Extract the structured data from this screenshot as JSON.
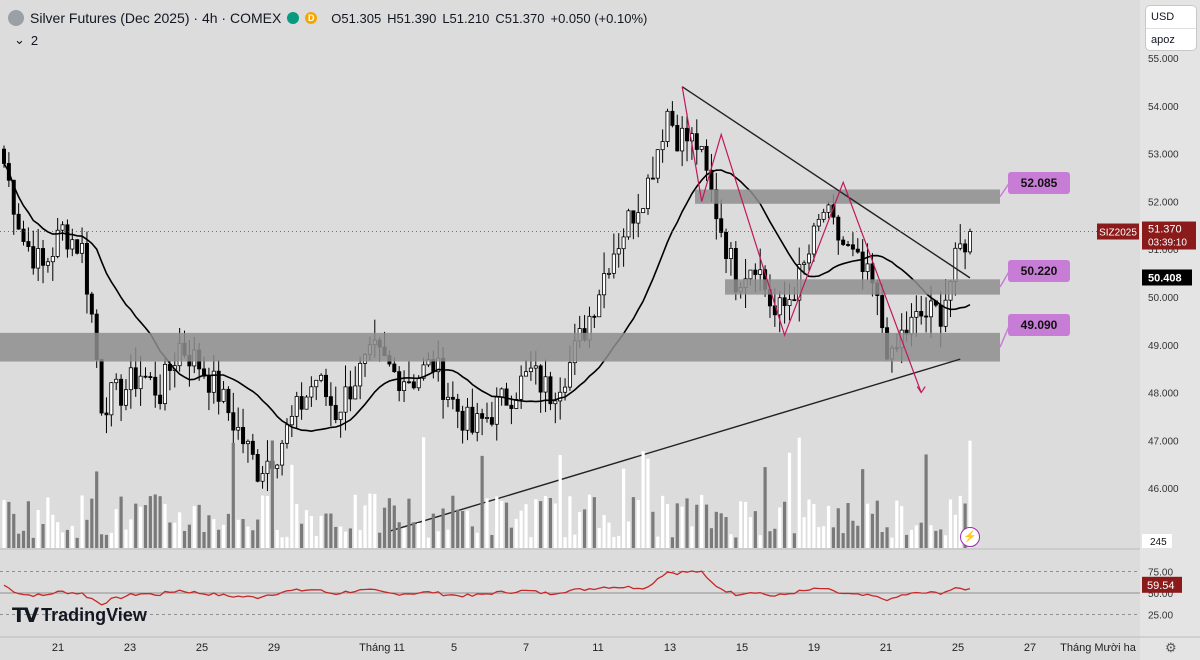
{
  "header": {
    "title": "Silver Futures (Dec 2025) · 4h · COMEX",
    "dot_label": "D",
    "o": "O51.305",
    "h": "H51.390",
    "l": "L51.210",
    "c": "C51.370",
    "chg": "+0.050 (+0.10%)",
    "indicator_count": "2"
  },
  "currency": {
    "label": "USD",
    "sub": "apoz"
  },
  "brand": "TradingView",
  "colors": {
    "up": "#ffffff",
    "down": "#000000",
    "zone": "#8e8e8e",
    "ma": "#000000",
    "pattern": "#c2185b",
    "label": "#c77dd6",
    "rsi": "#c62828",
    "price_tag": "#8b1a1a"
  },
  "chart_data": {
    "type": "candlestick",
    "title": "",
    "y_range": [
      45.0,
      55.0
    ],
    "y_ticks": [
      "55.000",
      "54.000",
      "53.000",
      "52.000",
      "51.000",
      "50.000",
      "49.000",
      "48.000",
      "47.000",
      "46.000"
    ],
    "x_ticks": [
      "21",
      "23",
      "25",
      "29",
      "Tháng 11",
      "5",
      "7",
      "11",
      "13",
      "15",
      "19",
      "21",
      "25",
      "27",
      "Tháng Mười ha"
    ],
    "close_path": [
      [
        0,
        52.8
      ],
      [
        4,
        51.2
      ],
      [
        8,
        50.6
      ],
      [
        12,
        51.4
      ],
      [
        16,
        51.0
      ],
      [
        18,
        49.6
      ],
      [
        20,
        47.8
      ],
      [
        24,
        48.0
      ],
      [
        28,
        48.4
      ],
      [
        32,
        48.0
      ],
      [
        36,
        49.0
      ],
      [
        40,
        48.6
      ],
      [
        44,
        48.0
      ],
      [
        48,
        47.2
      ],
      [
        52,
        46.4
      ],
      [
        56,
        46.8
      ],
      [
        60,
        47.6
      ],
      [
        64,
        48.3
      ],
      [
        68,
        47.6
      ],
      [
        72,
        48.3
      ],
      [
        76,
        48.8
      ],
      [
        80,
        48.4
      ],
      [
        84,
        48.3
      ],
      [
        88,
        48.6
      ],
      [
        92,
        47.8
      ],
      [
        96,
        47.2
      ],
      [
        100,
        47.6
      ],
      [
        104,
        48.0
      ],
      [
        108,
        48.4
      ],
      [
        112,
        48.0
      ],
      [
        116,
        48.6
      ],
      [
        120,
        49.6
      ],
      [
        124,
        50.8
      ],
      [
        128,
        51.6
      ],
      [
        132,
        52.4
      ],
      [
        136,
        53.9
      ],
      [
        138,
        53.4
      ],
      [
        142,
        53.2
      ],
      [
        146,
        51.8
      ],
      [
        150,
        50.4
      ],
      [
        154,
        50.8
      ],
      [
        158,
        49.6
      ],
      [
        160,
        49.8
      ],
      [
        164,
        50.6
      ],
      [
        168,
        51.8
      ],
      [
        170,
        51.4
      ],
      [
        174,
        50.8
      ],
      [
        178,
        50.2
      ],
      [
        180,
        49.4
      ],
      [
        182,
        48.6
      ],
      [
        184,
        49.2
      ],
      [
        188,
        49.6
      ],
      [
        192,
        49.7
      ],
      [
        196,
        51.0
      ],
      [
        198,
        51.37
      ]
    ],
    "candle_count": 199,
    "moving_average": {
      "value": "50.408"
    },
    "zones": [
      {
        "label": "52.085",
        "top": 52.25,
        "bottom": 51.95
      },
      {
        "label": "50.220",
        "top": 50.37,
        "bottom": 50.05
      },
      {
        "label": "49.090",
        "top": 49.25,
        "bottom": 48.65
      }
    ],
    "last_price": {
      "symbol": "SIZ2025",
      "price": "51.370",
      "countdown": "03:39:10"
    },
    "volume": {
      "label": "245"
    },
    "rsi": {
      "value": "59.54",
      "levels": [
        "75.00",
        "50.00",
        "25.00"
      ]
    }
  }
}
